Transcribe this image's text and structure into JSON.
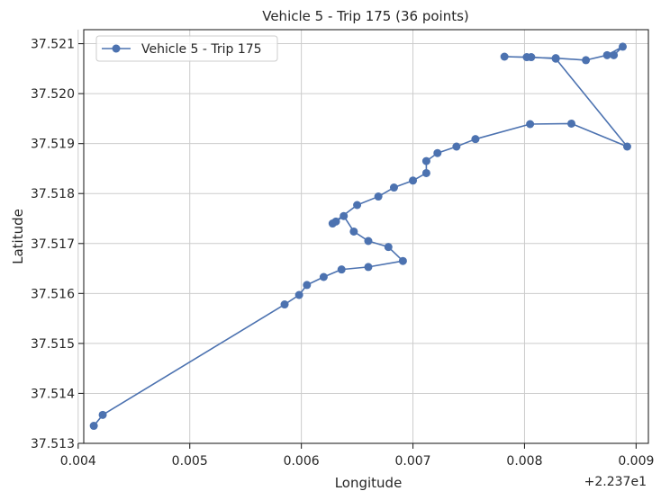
{
  "chart_data": {
    "type": "line",
    "title": "Vehicle 5 - Trip 175 (36 points)",
    "xlabel": "Longitude",
    "ylabel": "Latitude",
    "x_offset_label": "+2.237e1",
    "xlim": [
      0.00405,
      0.00911
    ],
    "ylim": [
      37.513,
      37.52128
    ],
    "x_ticks": [
      0.004,
      0.005,
      0.006,
      0.007,
      0.008,
      0.009
    ],
    "x_tick_labels": [
      "0.004",
      "0.005",
      "0.006",
      "0.007",
      "0.008",
      "0.009"
    ],
    "y_ticks": [
      37.513,
      37.514,
      37.515,
      37.516,
      37.517,
      37.518,
      37.519,
      37.52,
      37.521
    ],
    "y_tick_labels": [
      "37.513",
      "37.514",
      "37.515",
      "37.516",
      "37.517",
      "37.518",
      "37.519",
      "37.520",
      "37.521"
    ],
    "grid": true,
    "legend_position": "top-left",
    "color": "#4c72b0",
    "series": [
      {
        "name": "Vehicle 5 - Trip 175",
        "x": [
          0.00414,
          0.00422,
          0.00585,
          0.00598,
          0.00605,
          0.0062,
          0.00636,
          0.0066,
          0.00691,
          0.00678,
          0.0066,
          0.00647,
          0.00638,
          0.00631,
          0.00628,
          0.0065,
          0.00669,
          0.00683,
          0.007,
          0.00712,
          0.00712,
          0.00722,
          0.00739,
          0.00756,
          0.00805,
          0.00842,
          0.00892,
          0.00828,
          0.00806,
          0.00802,
          0.00782,
          0.00828,
          0.00855,
          0.00874,
          0.00888,
          0.0088
        ],
        "y": [
          37.51335,
          37.51357,
          37.51578,
          37.51597,
          37.51617,
          37.51633,
          37.51648,
          37.51653,
          37.51665,
          37.51693,
          37.51705,
          37.51724,
          37.51755,
          37.51744,
          37.5174,
          37.51777,
          37.51794,
          37.51812,
          37.51826,
          37.51841,
          37.51865,
          37.51881,
          37.51894,
          37.51909,
          37.51939,
          37.5194,
          37.51894,
          37.5207,
          37.52073,
          37.52073,
          37.52074,
          37.52071,
          37.52067,
          37.52077,
          37.52094,
          37.52077
        ]
      }
    ]
  }
}
